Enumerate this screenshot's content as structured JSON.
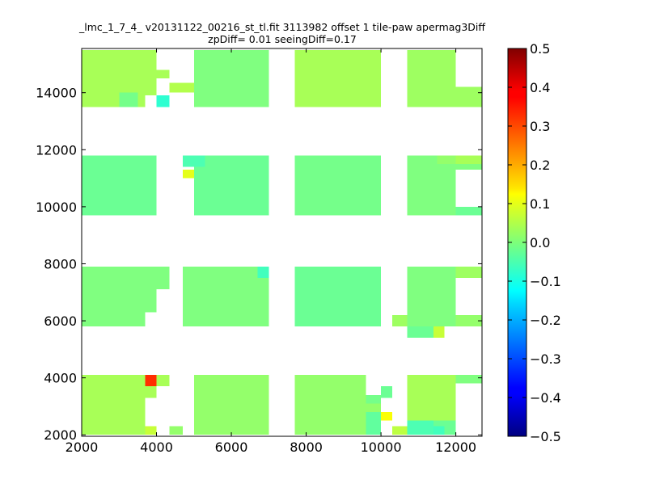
{
  "chart_data": {
    "type": "heatmap",
    "title_line1": "_lmc_1_7_4_ v20131122_00216_st_tl.fit 3113982 offset 1 tile-paw apermag3Diff",
    "title_line2": "zpDiff= 0.01 seeingDiff=0.17",
    "xlabel": "",
    "ylabel": "",
    "xlim": [
      2000,
      12700
    ],
    "ylim": [
      1950,
      15550
    ],
    "x_ticks": [
      2000,
      4000,
      6000,
      8000,
      10000,
      12000
    ],
    "x_tick_labels": [
      "2000",
      "4000",
      "6000",
      "8000",
      "10000",
      "12000"
    ],
    "y_ticks": [
      2000,
      4000,
      6000,
      8000,
      10000,
      12000,
      14000
    ],
    "y_tick_labels": [
      "2000",
      "4000",
      "6000",
      "8000",
      "10000",
      "12000",
      "14000"
    ],
    "colorbar": {
      "colormap": "jet",
      "vmin": -0.5,
      "vmax": 0.5,
      "ticks": [
        0.5,
        0.4,
        0.3,
        0.2,
        0.1,
        0.0,
        -0.1,
        -0.2,
        -0.3,
        -0.4,
        -0.5
      ],
      "tick_labels": [
        "0.5",
        "0.4",
        "0.3",
        "0.2",
        "0.1",
        "0.0",
        "−0.1",
        "−0.2",
        "−0.3",
        "−0.4",
        "−0.5"
      ]
    },
    "detector_blocks": [
      {
        "x": [
          2000,
          4350
        ],
        "y": [
          13500,
          15500
        ],
        "value": 0.04
      },
      {
        "x": [
          4700,
          7000
        ],
        "y": [
          13500,
          15500
        ],
        "value": 0.0
      },
      {
        "x": [
          7700,
          10000
        ],
        "y": [
          13500,
          15500
        ],
        "value": 0.04
      },
      {
        "x": [
          10700,
          12700
        ],
        "y": [
          13500,
          15500
        ],
        "value": 0.03
      },
      {
        "x": [
          2000,
          4350
        ],
        "y": [
          9700,
          11800
        ],
        "value": -0.02
      },
      {
        "x": [
          4700,
          7000
        ],
        "y": [
          9700,
          11800
        ],
        "value": -0.02
      },
      {
        "x": [
          7700,
          10000
        ],
        "y": [
          9700,
          11800
        ],
        "value": -0.01
      },
      {
        "x": [
          10700,
          12700
        ],
        "y": [
          9700,
          11800
        ],
        "value": 0.0
      },
      {
        "x": [
          2000,
          4350
        ],
        "y": [
          5800,
          7900
        ],
        "value": 0.0
      },
      {
        "x": [
          4700,
          7000
        ],
        "y": [
          5800,
          7900
        ],
        "value": 0.0
      },
      {
        "x": [
          7700,
          10000
        ],
        "y": [
          5800,
          7900
        ],
        "value": -0.02
      },
      {
        "x": [
          10700,
          12700
        ],
        "y": [
          5800,
          7900
        ],
        "value": 0.0
      },
      {
        "x": [
          2000,
          4350
        ],
        "y": [
          2000,
          4100
        ],
        "value": 0.04
      },
      {
        "x": [
          4700,
          7000
        ],
        "y": [
          2000,
          4100
        ],
        "value": 0.02
      },
      {
        "x": [
          7700,
          10000
        ],
        "y": [
          2000,
          4100
        ],
        "value": 0.02
      },
      {
        "x": [
          10700,
          12700
        ],
        "y": [
          2000,
          4100
        ],
        "value": 0.04
      }
    ],
    "missing_cells": [
      {
        "x": [
          4000,
          4350
        ],
        "y": [
          14800,
          15500
        ]
      },
      {
        "x": [
          4000,
          4350
        ],
        "y": [
          13900,
          14500
        ]
      },
      {
        "x": [
          3700,
          4350
        ],
        "y": [
          13500,
          13900
        ]
      },
      {
        "x": [
          4000,
          4350
        ],
        "y": [
          9700,
          11800
        ]
      },
      {
        "x": [
          4000,
          4350
        ],
        "y": [
          6300,
          7100
        ]
      },
      {
        "x": [
          3700,
          4350
        ],
        "y": [
          5800,
          6300
        ]
      },
      {
        "x": [
          3700,
          4350
        ],
        "y": [
          2000,
          3300
        ]
      },
      {
        "x": [
          4000,
          4350
        ],
        "y": [
          3300,
          3700
        ]
      },
      {
        "x": [
          4700,
          5000
        ],
        "y": [
          13500,
          15500
        ]
      },
      {
        "x": [
          4700,
          5000
        ],
        "y": [
          9700,
          11800
        ]
      },
      {
        "x": [
          4700,
          5000
        ],
        "y": [
          2000,
          4100
        ]
      },
      {
        "x": [
          9600,
          10000
        ],
        "y": [
          3100,
          4100
        ]
      },
      {
        "x": [
          12000,
          12700
        ],
        "y": [
          14200,
          15500
        ]
      },
      {
        "x": [
          12000,
          12700
        ],
        "y": [
          13500,
          13900
        ]
      },
      {
        "x": [
          12000,
          12700
        ],
        "y": [
          10000,
          11300
        ]
      },
      {
        "x": [
          12000,
          12700
        ],
        "y": [
          9700,
          10000
        ]
      },
      {
        "x": [
          12000,
          12700
        ],
        "y": [
          7500,
          7900
        ]
      },
      {
        "x": [
          12000,
          12700
        ],
        "y": [
          6200,
          7500
        ]
      },
      {
        "x": [
          12000,
          12700
        ],
        "y": [
          5800,
          6200
        ]
      },
      {
        "x": [
          12000,
          12700
        ],
        "y": [
          2500,
          3800
        ]
      },
      {
        "x": [
          12000,
          12700
        ],
        "y": [
          2000,
          2500
        ]
      }
    ],
    "cells": [
      {
        "x": [
          4700,
          5000
        ],
        "y": [
          14000,
          14350
        ],
        "value": 0.05
      },
      {
        "x": [
          4350,
          4700
        ],
        "y": [
          14000,
          14350
        ],
        "value": 0.05
      },
      {
        "x": [
          4000,
          4350
        ],
        "y": [
          13500,
          13900
        ],
        "value": -0.08
      },
      {
        "x": [
          3000,
          3500
        ],
        "y": [
          13500,
          14000
        ],
        "value": -0.01
      },
      {
        "x": [
          12000,
          12700
        ],
        "y": [
          13500,
          13900
        ],
        "value": 0.03
      },
      {
        "x": [
          4700,
          5000
        ],
        "y": [
          11000,
          11300
        ],
        "value": 0.1
      },
      {
        "x": [
          4700,
          5300
        ],
        "y": [
          11400,
          11800
        ],
        "value": -0.05
      },
      {
        "x": [
          11500,
          12000
        ],
        "y": [
          11500,
          11800
        ],
        "value": 0.02
      },
      {
        "x": [
          12000,
          12700
        ],
        "y": [
          11500,
          11800
        ],
        "value": 0.04
      },
      {
        "x": [
          12000,
          12700
        ],
        "y": [
          9700,
          10000
        ],
        "value": -0.02
      },
      {
        "x": [
          6700,
          7000
        ],
        "y": [
          7500,
          7900
        ],
        "value": -0.06
      },
      {
        "x": [
          12000,
          12700
        ],
        "y": [
          7500,
          7900
        ],
        "value": 0.03
      },
      {
        "x": [
          10300,
          10700
        ],
        "y": [
          5800,
          6200
        ],
        "value": 0.03
      },
      {
        "x": [
          10700,
          11400
        ],
        "y": [
          5400,
          5800
        ],
        "value": -0.02
      },
      {
        "x": [
          11400,
          11700
        ],
        "y": [
          5400,
          5800
        ],
        "value": 0.07
      },
      {
        "x": [
          12000,
          12700
        ],
        "y": [
          5800,
          6200
        ],
        "value": 0.02
      },
      {
        "x": [
          3700,
          4000
        ],
        "y": [
          3700,
          4100
        ],
        "value": 0.33
      },
      {
        "x": [
          3700,
          4000
        ],
        "y": [
          3300,
          3700
        ],
        "value": 0.04
      },
      {
        "x": [
          4350,
          4700
        ],
        "y": [
          2000,
          2300
        ],
        "value": 0.02
      },
      {
        "x": [
          3700,
          4000
        ],
        "y": [
          2000,
          2300
        ],
        "value": 0.07
      },
      {
        "x": [
          9600,
          10000
        ],
        "y": [
          2000,
          2800
        ],
        "value": -0.03
      },
      {
        "x": [
          9600,
          10000
        ],
        "y": [
          3100,
          3400
        ],
        "value": -0.01
      },
      {
        "x": [
          10000,
          10300
        ],
        "y": [
          3300,
          3700
        ],
        "value": -0.02
      },
      {
        "x": [
          10000,
          10300
        ],
        "y": [
          2500,
          2800
        ],
        "value": 0.12
      },
      {
        "x": [
          10300,
          10700
        ],
        "y": [
          2000,
          2300
        ],
        "value": 0.06
      },
      {
        "x": [
          10700,
          11400
        ],
        "y": [
          2000,
          2500
        ],
        "value": -0.05
      },
      {
        "x": [
          11400,
          12000
        ],
        "y": [
          2000,
          2500
        ],
        "value": -0.02
      },
      {
        "x": [
          11400,
          11700
        ],
        "y": [
          2000,
          2300
        ],
        "value": -0.06
      },
      {
        "x": [
          12000,
          12700
        ],
        "y": [
          3800,
          4100
        ],
        "value": 0.0
      }
    ]
  }
}
